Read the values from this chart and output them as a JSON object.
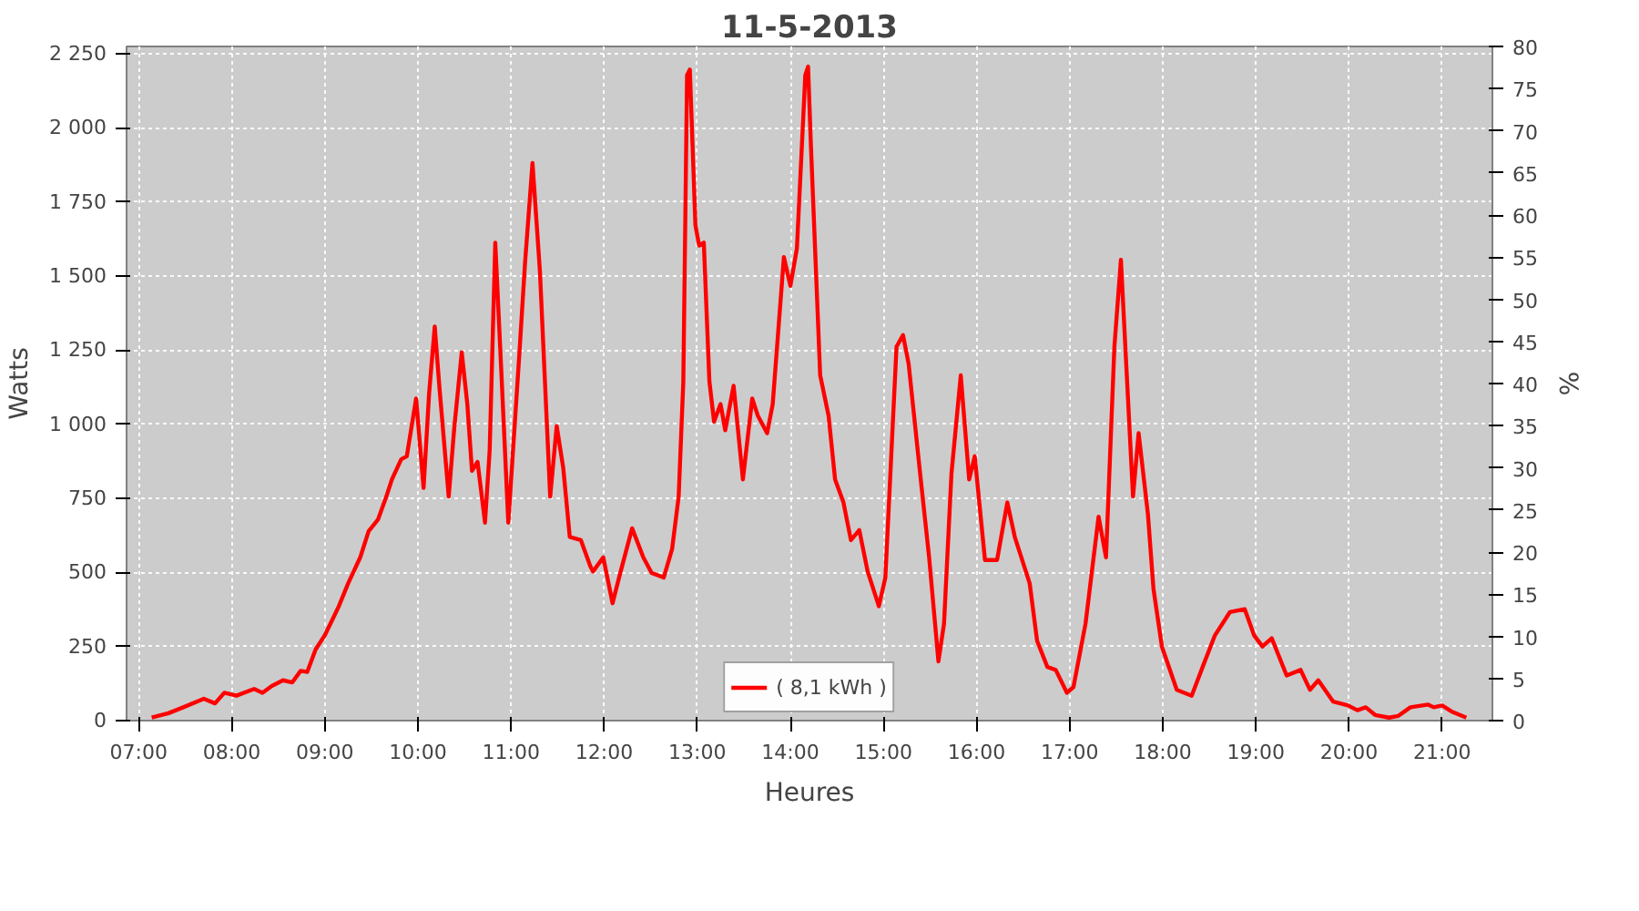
{
  "chart_data": {
    "type": "line",
    "title": "11-5-2013",
    "xlabel": "Heures",
    "ylabel": "Watts",
    "y2label": "%",
    "xlim": [
      6.87,
      21.54
    ],
    "ylim": [
      0,
      2275
    ],
    "y2lim": [
      0,
      80
    ],
    "xticks": [
      {
        "value": 7,
        "label": "07:00"
      },
      {
        "value": 8,
        "label": "08:00"
      },
      {
        "value": 9,
        "label": "09:00"
      },
      {
        "value": 10,
        "label": "10:00"
      },
      {
        "value": 11,
        "label": "11:00"
      },
      {
        "value": 12,
        "label": "12:00"
      },
      {
        "value": 13,
        "label": "13:00"
      },
      {
        "value": 14,
        "label": "14:00"
      },
      {
        "value": 15,
        "label": "15:00"
      },
      {
        "value": 16,
        "label": "16:00"
      },
      {
        "value": 17,
        "label": "17:00"
      },
      {
        "value": 18,
        "label": "18:00"
      },
      {
        "value": 19,
        "label": "19:00"
      },
      {
        "value": 20,
        "label": "20:00"
      },
      {
        "value": 21,
        "label": "21:00"
      }
    ],
    "yticks": [
      0,
      250,
      500,
      750,
      {
        "value": 1000,
        "label": "1 000"
      },
      {
        "value": 1250,
        "label": "1 250"
      },
      {
        "value": 1500,
        "label": "1 500"
      },
      {
        "value": 1750,
        "label": "1 750"
      },
      {
        "value": 2000,
        "label": "2 000"
      },
      {
        "value": 2250,
        "label": "2 250"
      }
    ],
    "y2ticks": [
      0,
      5,
      10,
      15,
      20,
      25,
      30,
      35,
      40,
      45,
      50,
      55,
      60,
      65,
      70,
      75,
      80
    ],
    "grid": true,
    "legend": "bottom",
    "line_style": "solid",
    "series": [
      {
        "name": "( 8,1 kWh )",
        "color": "#ff0000",
        "x": [
          7.14,
          7.32,
          7.48,
          7.7,
          7.82,
          7.92,
          8.05,
          8.24,
          8.33,
          8.43,
          8.55,
          8.65,
          8.74,
          8.81,
          8.9,
          9.0,
          9.15,
          9.25,
          9.38,
          9.47,
          9.57,
          9.66,
          9.72,
          9.82,
          9.88,
          9.98,
          10.06,
          10.12,
          10.18,
          10.23,
          10.33,
          10.39,
          10.47,
          10.53,
          10.58,
          10.64,
          10.72,
          10.77,
          10.83,
          10.9,
          10.97,
          11.09,
          11.15,
          11.23,
          11.31,
          11.42,
          11.49,
          11.56,
          11.63,
          11.75,
          11.85,
          11.88,
          11.99,
          12.09,
          12.16,
          12.3,
          12.42,
          12.51,
          12.64,
          12.73,
          12.8,
          12.85,
          12.89,
          12.92,
          12.98,
          13.02,
          13.07,
          13.13,
          13.18,
          13.25,
          13.3,
          13.39,
          13.49,
          13.59,
          13.65,
          13.75,
          13.81,
          13.93,
          14.0,
          14.07,
          14.16,
          14.19,
          14.22,
          14.32,
          14.41,
          14.48,
          14.57,
          14.65,
          14.74,
          14.83,
          14.95,
          15.02,
          15.08,
          15.14,
          15.21,
          15.27,
          15.4,
          15.49,
          15.59,
          15.65,
          15.73,
          15.83,
          15.92,
          15.98,
          16.09,
          16.22,
          16.33,
          16.41,
          16.57,
          16.65,
          16.76,
          16.85,
          16.97,
          17.04,
          17.17,
          17.31,
          17.39,
          17.48,
          17.55,
          17.61,
          17.68,
          17.74,
          17.84,
          17.9,
          17.99,
          18.15,
          18.31,
          18.44,
          18.56,
          18.72,
          18.88,
          18.98,
          19.07,
          19.17,
          19.33,
          19.48,
          19.58,
          19.67,
          19.83,
          19.99,
          20.09,
          20.18,
          20.28,
          20.43,
          20.53,
          20.66,
          20.85,
          20.91,
          21.0,
          21.1,
          21.26
        ],
        "values": [
          10,
          25,
          45,
          74,
          58,
          94,
          84,
          107,
          94,
          117,
          136,
          129,
          168,
          164,
          240,
          288,
          386,
          463,
          551,
          639,
          678,
          756,
          814,
          882,
          892,
          1087,
          785,
          1106,
          1330,
          1126,
          756,
          989,
          1243,
          1068,
          843,
          873,
          668,
          912,
          1613,
          1145,
          668,
          1243,
          1545,
          1882,
          1515,
          756,
          994,
          853,
          620,
          609,
          522,
          503,
          551,
          396,
          483,
          649,
          551,
          498,
          483,
          580,
          756,
          1145,
          2178,
          2197,
          1671,
          1603,
          1613,
          1145,
          1009,
          1068,
          980,
          1130,
          814,
          1087,
          1029,
          970,
          1068,
          1564,
          1467,
          1594,
          2178,
          2207,
          1944,
          1165,
          1029,
          814,
          736,
          609,
          643,
          503,
          386,
          483,
          873,
          1262,
          1301,
          1204,
          814,
          551,
          200,
          327,
          834,
          1165,
          814,
          892,
          542,
          542,
          736,
          620,
          463,
          269,
          181,
          171,
          94,
          113,
          327,
          688,
          551,
          1262,
          1555,
          1185,
          756,
          970,
          697,
          444,
          250,
          104,
          84,
          191,
          288,
          366,
          376,
          288,
          250,
          278,
          152,
          171,
          104,
          136,
          64,
          51,
          35,
          45,
          19,
          10,
          16,
          45,
          54,
          45,
          51,
          31,
          10
        ]
      }
    ]
  }
}
